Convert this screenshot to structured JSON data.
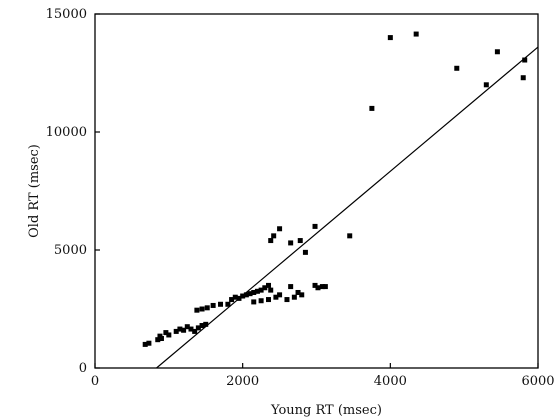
{
  "chart_data": {
    "type": "scatter",
    "title": "",
    "xlabel": "Young RT (msec)",
    "ylabel": "Old RT (msec)",
    "xlim": [
      0,
      6000
    ],
    "ylim": [
      0,
      15000
    ],
    "xticks": [
      0,
      2000,
      4000,
      6000
    ],
    "yticks": [
      0,
      5000,
      10000,
      15000
    ],
    "xtick_labels": [
      "0",
      "2000",
      "4000",
      "6000"
    ],
    "ytick_labels": [
      "0",
      "5000",
      "10000",
      "15000"
    ],
    "grid": false,
    "marker": "square",
    "color": "#000000",
    "series": [
      {
        "points": [
          [
            680,
            1000
          ],
          [
            730,
            1050
          ],
          [
            850,
            1200
          ],
          [
            880,
            1350
          ],
          [
            900,
            1250
          ],
          [
            960,
            1500
          ],
          [
            1000,
            1400
          ],
          [
            1100,
            1550
          ],
          [
            1150,
            1650
          ],
          [
            1200,
            1600
          ],
          [
            1250,
            1750
          ],
          [
            1300,
            1650
          ],
          [
            1350,
            1550
          ],
          [
            1400,
            1700
          ],
          [
            1450,
            1800
          ],
          [
            1500,
            1850
          ],
          [
            1380,
            2450
          ],
          [
            1450,
            2500
          ],
          [
            1520,
            2550
          ],
          [
            1600,
            2650
          ],
          [
            1700,
            2700
          ],
          [
            1800,
            2700
          ],
          [
            1850,
            2900
          ],
          [
            1900,
            3000
          ],
          [
            1950,
            2950
          ],
          [
            2000,
            3050
          ],
          [
            2050,
            3100
          ],
          [
            2100,
            3150
          ],
          [
            2150,
            3200
          ],
          [
            2200,
            3250
          ],
          [
            2250,
            3300
          ],
          [
            2300,
            3400
          ],
          [
            2350,
            3500
          ],
          [
            2380,
            3300
          ],
          [
            2150,
            2800
          ],
          [
            2250,
            2850
          ],
          [
            2350,
            2900
          ],
          [
            2450,
            3000
          ],
          [
            2500,
            3100
          ],
          [
            2650,
            3450
          ],
          [
            2700,
            3000
          ],
          [
            2750,
            3200
          ],
          [
            2800,
            3100
          ],
          [
            2980,
            3500
          ],
          [
            3020,
            3400
          ],
          [
            3080,
            3450
          ],
          [
            3120,
            3450
          ],
          [
            2600,
            2900
          ],
          [
            2380,
            5400
          ],
          [
            2420,
            5600
          ],
          [
            2500,
            5900
          ],
          [
            2650,
            5300
          ],
          [
            2780,
            5400
          ],
          [
            2850,
            4900
          ],
          [
            2980,
            6000
          ],
          [
            3450,
            5600
          ],
          [
            3750,
            11000
          ],
          [
            4000,
            14000
          ],
          [
            4350,
            14150
          ],
          [
            4900,
            12700
          ],
          [
            5300,
            12000
          ],
          [
            5450,
            13400
          ],
          [
            5800,
            12300
          ],
          [
            5820,
            13050
          ]
        ]
      }
    ],
    "regression_line": {
      "x": [
        700,
        6000
      ],
      "y": [
        -350,
        13600
      ]
    }
  }
}
